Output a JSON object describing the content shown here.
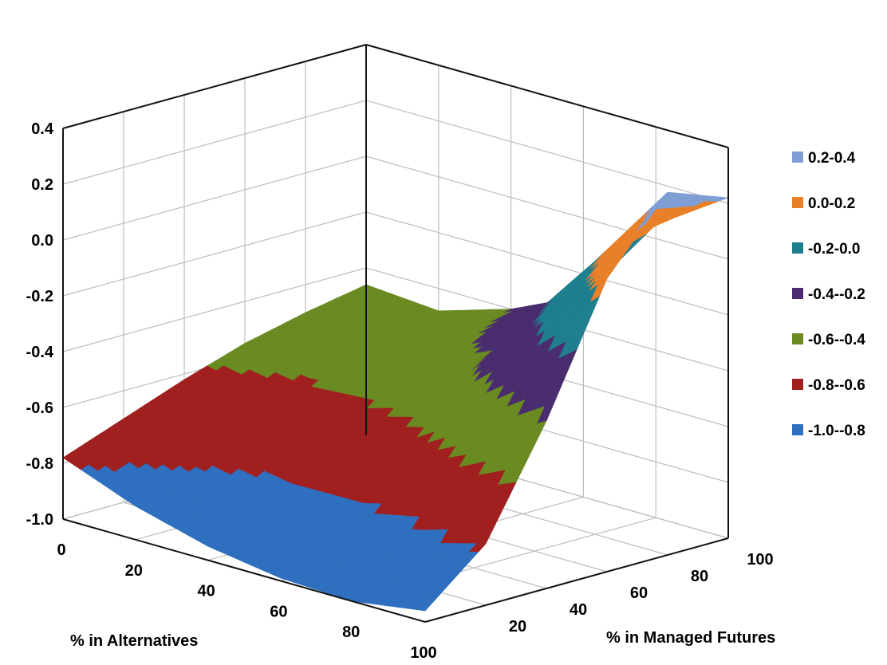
{
  "chart_data": {
    "type": "surface",
    "title": "",
    "xlabel": "% in Alternatives",
    "ylabel": "% in Managed Futures",
    "zlabel": "",
    "x_ticks": [
      "0",
      "20",
      "40",
      "60",
      "80",
      "100"
    ],
    "y_ticks": [
      "20",
      "40",
      "60",
      "80",
      "100"
    ],
    "z_ticks": [
      "0.4",
      "0.2",
      "0.0",
      "-0.2",
      "-0.4",
      "-0.6",
      "-0.8",
      "-1.0"
    ],
    "z_range": [
      -1.0,
      0.4
    ],
    "grid": true,
    "legend_position": "right",
    "x": [
      0,
      20,
      40,
      60,
      80,
      100
    ],
    "y": [
      0,
      20,
      40,
      60,
      80,
      100
    ],
    "z_rows_by_x": [
      [
        -0.78,
        -0.7,
        -0.62,
        -0.55,
        -0.5,
        -0.46
      ],
      [
        -0.88,
        -0.8,
        -0.7,
        -0.58,
        -0.52,
        -0.48
      ],
      [
        -0.95,
        -0.86,
        -0.72,
        -0.55,
        -0.45,
        -0.4
      ],
      [
        -0.99,
        -0.88,
        -0.68,
        -0.45,
        -0.32,
        -0.28
      ],
      [
        -1.0,
        -0.85,
        -0.55,
        -0.2,
        -0.02,
        0.05
      ],
      [
        -0.96,
        -0.78,
        -0.4,
        0.05,
        0.3,
        0.22
      ]
    ],
    "bands": [
      {
        "label": "0.2-0.4",
        "min": 0.2,
        "max": 0.4,
        "color": "#7f9fd4"
      },
      {
        "label": "0.0-0.2",
        "min": 0.0,
        "max": 0.2,
        "color": "#e8802a"
      },
      {
        "label": "-0.2-0.0",
        "min": -0.2,
        "max": 0.0,
        "color": "#1f7f8e"
      },
      {
        "label": "-0.4--0.2",
        "min": -0.4,
        "max": -0.2,
        "color": "#4a2d6e"
      },
      {
        "label": "-0.6--0.4",
        "min": -0.6,
        "max": -0.4,
        "color": "#6a8a22"
      },
      {
        "label": "-0.8--0.6",
        "min": -0.8,
        "max": -0.6,
        "color": "#a02020"
      },
      {
        "label": "-1.0--0.8",
        "min": -1.0,
        "max": -0.8,
        "color": "#2f6fbf"
      }
    ]
  }
}
